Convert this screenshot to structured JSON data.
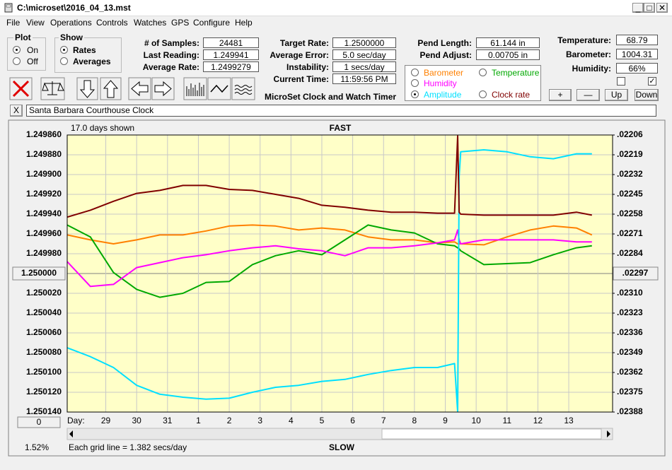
{
  "window": {
    "title": "C:\\microset\\2016_04_13.mst"
  },
  "menu": [
    "File",
    "View",
    "Operations",
    "Controls",
    "Watches",
    "GPS",
    "Configure",
    "Help"
  ],
  "plot_group": {
    "title": "Plot",
    "options": [
      "On",
      "Off"
    ],
    "selected": 0
  },
  "show_group": {
    "title": "Show",
    "options": [
      "Rates",
      "Averages"
    ],
    "selected": 0
  },
  "stats": [
    {
      "label": "# of Samples:",
      "value": "24481"
    },
    {
      "label": "Last Reading:",
      "value": "1.249941"
    },
    {
      "label": "Average Rate:",
      "value": "1.2499279"
    }
  ],
  "rates": [
    {
      "label": "Target Rate:",
      "value": "1.2500000"
    },
    {
      "label": "Average Error:",
      "value": "5.0 sec/day"
    },
    {
      "label": "Instability:",
      "value": "1 secs/day"
    },
    {
      "label": "Current Time:",
      "value": "11:59:56 PM"
    }
  ],
  "caption": "MicroSet Clock and Watch Timer",
  "pend": [
    {
      "label": "Pend Length:",
      "value": "61.144 in"
    },
    {
      "label": "Pend Adjust:",
      "value": "0.00705 in"
    }
  ],
  "env": [
    {
      "label": "Temperature:",
      "value": "68.79"
    },
    {
      "label": "Barometer:",
      "value": "1004.31"
    },
    {
      "label": "Humidity:",
      "value": "66%"
    }
  ],
  "checkboxes": [
    false,
    true
  ],
  "env_buttons": [
    "+",
    "—",
    "Up",
    "Down"
  ],
  "clock_button": "X",
  "clock_name": "Santa Barbara Courthouse Clock",
  "legend_selected": 3,
  "chart_data": {
    "type": "line",
    "days_shown": "17.0 days shown",
    "top_label": "FAST",
    "bottom_label": "SLOW",
    "x_label": "Day:",
    "grid_note": "Each grid line = 1.382 secs/day",
    "offset_button": "0",
    "status": "1.52%",
    "grid": true,
    "xlim": [
      -1.25,
      16.42
    ],
    "xticks": [
      {
        "value": 0,
        "label": "29"
      },
      {
        "value": 1,
        "label": "30"
      },
      {
        "value": 2,
        "label": "31"
      },
      {
        "value": 3,
        "label": "1"
      },
      {
        "value": 4,
        "label": "2"
      },
      {
        "value": 5,
        "label": "3"
      },
      {
        "value": 6,
        "label": "4"
      },
      {
        "value": 7,
        "label": "5"
      },
      {
        "value": 8,
        "label": "6"
      },
      {
        "value": 9,
        "label": "7"
      },
      {
        "value": 10,
        "label": "8"
      },
      {
        "value": 11,
        "label": "9"
      },
      {
        "value": 12,
        "label": "10"
      },
      {
        "value": 13,
        "label": "11"
      },
      {
        "value": 14,
        "label": "12"
      },
      {
        "value": 15,
        "label": "13"
      }
    ],
    "ylim": [
      1.25014,
      1.24986
    ],
    "yticks": [
      {
        "value": 1.24986,
        "label": "1.249860"
      },
      {
        "value": 1.24988,
        "label": "1.249880"
      },
      {
        "value": 1.2499,
        "label": "1.249900"
      },
      {
        "value": 1.24992,
        "label": "1.249920"
      },
      {
        "value": 1.24994,
        "label": "1.249940"
      },
      {
        "value": 1.24996,
        "label": "1.249960"
      },
      {
        "value": 1.24998,
        "label": "1.249980"
      },
      {
        "value": 1.25,
        "label": "1.250000"
      },
      {
        "value": 1.25002,
        "label": "1.250020"
      },
      {
        "value": 1.25004,
        "label": "1.250040"
      },
      {
        "value": 1.25006,
        "label": "1.250060"
      },
      {
        "value": 1.25008,
        "label": "1.250080"
      },
      {
        "value": 1.2501,
        "label": "1.250100"
      },
      {
        "value": 1.25012,
        "label": "1.250120"
      },
      {
        "value": 1.25014,
        "label": "1.250140"
      }
    ],
    "y2lim": [
      0.02388,
      0.02206
    ],
    "y2ticks": [
      {
        "value": 0.02206,
        "label": ".02206"
      },
      {
        "value": 0.02219,
        "label": ".02219"
      },
      {
        "value": 0.02232,
        "label": ".02232"
      },
      {
        "value": 0.02245,
        "label": ".02245"
      },
      {
        "value": 0.02258,
        "label": ".02258"
      },
      {
        "value": 0.02271,
        "label": ".02271"
      },
      {
        "value": 0.02284,
        "label": ".02284"
      },
      {
        "value": 0.02297,
        "label": ".02297"
      },
      {
        "value": 0.0231,
        "label": ".02310"
      },
      {
        "value": 0.02323,
        "label": ".02323"
      },
      {
        "value": 0.02336,
        "label": ".02336"
      },
      {
        "value": 0.02349,
        "label": ".02349"
      },
      {
        "value": 0.02362,
        "label": ".02362"
      },
      {
        "value": 0.02375,
        "label": ".02375"
      },
      {
        "value": 0.02388,
        "label": ".02388"
      }
    ],
    "x": [
      -1.25,
      -0.5,
      0.25,
      1,
      1.75,
      2.5,
      3.25,
      4,
      4.75,
      5.5,
      6.25,
      7,
      7.75,
      8.5,
      9.25,
      10,
      10.75,
      11.3,
      11.4,
      11.45,
      11.5,
      12.25,
      13,
      13.75,
      14.5,
      15.25,
      15.75
    ],
    "series": [
      {
        "name": "Barometer",
        "color": "#ff8000",
        "values": [
          1.249961,
          1.249966,
          1.24997,
          1.249966,
          1.249961,
          1.249961,
          1.249957,
          1.249952,
          1.249951,
          1.249952,
          1.249956,
          1.249954,
          1.249956,
          1.249963,
          1.249966,
          1.249966,
          1.249969,
          1.249968,
          1.24997,
          1.24997,
          1.24997,
          1.249971,
          1.249963,
          1.249956,
          1.249952,
          1.249954,
          1.249961
        ]
      },
      {
        "name": "Temperature",
        "color": "#00a800",
        "values": [
          1.249951,
          1.249963,
          1.249999,
          1.250016,
          1.250024,
          1.25002,
          1.250009,
          1.250008,
          1.249991,
          1.249982,
          1.249977,
          1.249981,
          1.249966,
          1.249951,
          1.249956,
          1.249959,
          1.24997,
          1.249972,
          1.249974,
          1.249975,
          1.249977,
          1.249991,
          1.24999,
          1.249989,
          1.249981,
          1.249974,
          1.249972
        ]
      },
      {
        "name": "Humidity",
        "color": "#ff00ff",
        "values": [
          1.249988,
          1.250013,
          1.250011,
          1.249994,
          1.249989,
          1.249984,
          1.249981,
          1.249977,
          1.249974,
          1.249972,
          1.249975,
          1.249977,
          1.249982,
          1.249974,
          1.249974,
          1.249972,
          1.249969,
          1.249966,
          1.249956,
          1.249966,
          1.24997,
          1.249966,
          1.249966,
          1.249966,
          1.249966,
          1.249968,
          1.249968
        ]
      },
      {
        "name": "Amplitude",
        "color": "#00e0ff",
        "values": [
          1.250075,
          1.250084,
          1.250095,
          1.250113,
          1.250122,
          1.250125,
          1.250127,
          1.250126,
          1.25012,
          1.250115,
          1.250113,
          1.250109,
          1.250107,
          1.250102,
          1.250098,
          1.250095,
          1.250095,
          1.250091,
          1.25014,
          1.249902,
          1.249877,
          1.249875,
          1.249877,
          1.249882,
          1.249884,
          1.249879,
          1.249879
        ]
      },
      {
        "name": "Clock rate",
        "color": "#800000",
        "values": [
          1.249943,
          1.249936,
          1.249927,
          1.249919,
          1.249916,
          1.249911,
          1.249911,
          1.249915,
          1.249916,
          1.24992,
          1.249924,
          1.249931,
          1.249933,
          1.249936,
          1.249938,
          1.249938,
          1.249939,
          1.249939,
          1.249861,
          1.249938,
          1.24994,
          1.249941,
          1.249941,
          1.249941,
          1.249941,
          1.249938,
          1.249941
        ]
      }
    ]
  }
}
